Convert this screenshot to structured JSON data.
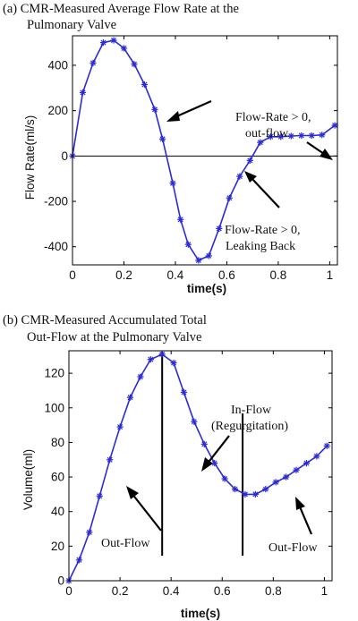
{
  "chart_data": [
    {
      "type": "line",
      "title_lines": [
        "(a) CMR-Measured Average Flow Rate at the",
        "Pulmonary Valve"
      ],
      "xlabel": "time(s)",
      "ylabel": "Flow Rate(ml/s)",
      "xlim": [
        0,
        1.03
      ],
      "ylim": [
        -480,
        530
      ],
      "xticks": [
        0,
        0.2,
        0.4,
        0.6,
        0.8,
        1
      ],
      "xtick_labels": [
        "0",
        "0.2",
        "0.4",
        "0.6",
        "0.8",
        "1"
      ],
      "yticks": [
        -400,
        -200,
        0,
        200,
        400
      ],
      "ytick_labels": [
        "-400",
        "-200",
        "0",
        "200",
        "400"
      ],
      "zero_line": true,
      "series": [
        {
          "color": "#2b2bd6",
          "marker": "asterisk",
          "x": [
            0,
            0.04,
            0.08,
            0.12,
            0.16,
            0.2,
            0.24,
            0.28,
            0.32,
            0.35,
            0.39,
            0.42,
            0.45,
            0.49,
            0.53,
            0.57,
            0.61,
            0.65,
            0.69,
            0.73,
            0.77,
            0.81,
            0.85,
            0.89,
            0.93,
            0.97,
            1.02
          ],
          "y": [
            0,
            280,
            410,
            500,
            510,
            475,
            405,
            315,
            205,
            75,
            -120,
            -280,
            -390,
            -460,
            -440,
            -320,
            -185,
            -90,
            -20,
            60,
            85,
            85,
            88,
            90,
            90,
            93,
            135
          ]
        }
      ],
      "annotations": [
        {
          "lines": [
            "Flow-Rate > 0,",
            "out-flow"
          ],
          "arrow": true
        },
        {
          "lines": [
            "Flow-Rate > 0,",
            "Leaking Back"
          ],
          "arrow": true
        }
      ]
    },
    {
      "type": "line",
      "title_lines": [
        "(b) CMR-Measured Accumulated Total",
        "Out-Flow at the Pulmonary Valve"
      ],
      "xlabel": "time(s)",
      "ylabel": "Volume(ml)",
      "xlim": [
        0,
        1.03
      ],
      "ylim": [
        0,
        133
      ],
      "xticks": [
        0,
        0.2,
        0.4,
        0.6,
        0.8,
        1
      ],
      "xtick_labels": [
        "0",
        "0.2",
        "0.4",
        "0.6",
        "0.8",
        "1"
      ],
      "yticks": [
        0,
        20,
        40,
        60,
        80,
        100,
        120
      ],
      "ytick_labels": [
        "0",
        "20",
        "40",
        "60",
        "80",
        "100",
        "120"
      ],
      "vertical_lines_x": [
        0.365,
        0.68
      ],
      "series": [
        {
          "color": "#2b2bd6",
          "marker": "asterisk",
          "x": [
            0,
            0.04,
            0.08,
            0.12,
            0.16,
            0.2,
            0.24,
            0.28,
            0.32,
            0.365,
            0.41,
            0.45,
            0.49,
            0.53,
            0.57,
            0.61,
            0.65,
            0.69,
            0.73,
            0.77,
            0.81,
            0.85,
            0.89,
            0.93,
            0.97,
            1.01
          ],
          "y": [
            0,
            12,
            28,
            49,
            70,
            89,
            106,
            118,
            128,
            131,
            126,
            109,
            92,
            79,
            68,
            59,
            53,
            50,
            50,
            53,
            57,
            60,
            64,
            68,
            72,
            78
          ]
        }
      ],
      "annotations": [
        {
          "lines": [
            "In-Flow",
            "(Regurgitation)"
          ],
          "arrow": true
        },
        {
          "lines": [
            "Out-Flow"
          ],
          "arrow": true
        },
        {
          "lines": [
            "Out-Flow"
          ],
          "arrow": true
        }
      ]
    }
  ]
}
